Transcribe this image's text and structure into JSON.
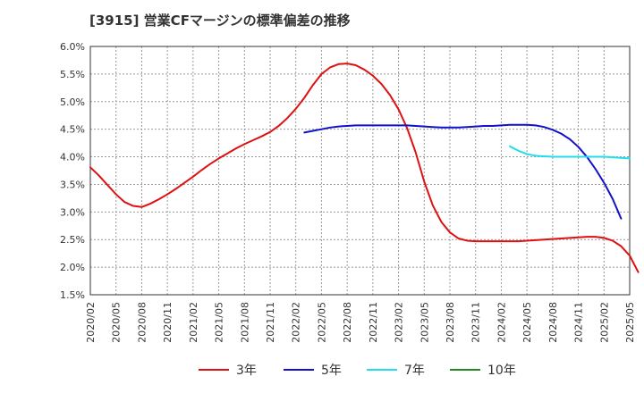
{
  "chart_data": {
    "type": "line",
    "title": "[3915]  営業CFマージンの標準偏差の推移",
    "xlabel": "",
    "ylabel": "",
    "ylim": [
      1.5,
      6.0
    ],
    "y_ticks": [
      "1.5%",
      "2.0%",
      "2.5%",
      "3.0%",
      "3.5%",
      "4.0%",
      "4.5%",
      "5.0%",
      "5.5%",
      "6.0%"
    ],
    "x_ticks": [
      "2020/02",
      "2020/05",
      "2020/08",
      "2020/11",
      "2021/02",
      "2021/05",
      "2021/08",
      "2021/11",
      "2022/02",
      "2022/05",
      "2022/08",
      "2022/11",
      "2023/02",
      "2023/05",
      "2023/08",
      "2023/11",
      "2024/02",
      "2024/05",
      "2024/08",
      "2024/11",
      "2025/02",
      "2025/05"
    ],
    "grid": true,
    "legend_position": "bottom",
    "series": [
      {
        "name": "3年",
        "color": "#dd1111",
        "points": [
          [
            "2020/02",
            3.81
          ],
          [
            "2020/03",
            3.66
          ],
          [
            "2020/04",
            3.49
          ],
          [
            "2020/05",
            3.32
          ],
          [
            "2020/06",
            3.18
          ],
          [
            "2020/07",
            3.11
          ],
          [
            "2020/08",
            3.09
          ],
          [
            "2020/09",
            3.15
          ],
          [
            "2020/10",
            3.23
          ],
          [
            "2020/11",
            3.32
          ],
          [
            "2020/12",
            3.42
          ],
          [
            "2021/01",
            3.53
          ],
          [
            "2021/02",
            3.64
          ],
          [
            "2021/03",
            3.76
          ],
          [
            "2021/04",
            3.87
          ],
          [
            "2021/05",
            3.97
          ],
          [
            "2021/06",
            4.06
          ],
          [
            "2021/07",
            4.15
          ],
          [
            "2021/08",
            4.23
          ],
          [
            "2021/09",
            4.3
          ],
          [
            "2021/10",
            4.37
          ],
          [
            "2021/11",
            4.45
          ],
          [
            "2021/12",
            4.56
          ],
          [
            "2022/01",
            4.7
          ],
          [
            "2022/02",
            4.87
          ],
          [
            "2022/03",
            5.07
          ],
          [
            "2022/04",
            5.3
          ],
          [
            "2022/05",
            5.5
          ],
          [
            "2022/06",
            5.62
          ],
          [
            "2022/07",
            5.68
          ],
          [
            "2022/08",
            5.69
          ],
          [
            "2022/09",
            5.66
          ],
          [
            "2022/10",
            5.58
          ],
          [
            "2022/11",
            5.47
          ],
          [
            "2022/12",
            5.32
          ],
          [
            "2023/01",
            5.12
          ],
          [
            "2023/02",
            4.86
          ],
          [
            "2023/03",
            4.52
          ],
          [
            "2023/04",
            4.08
          ],
          [
            "2023/05",
            3.55
          ],
          [
            "2023/06",
            3.12
          ],
          [
            "2023/07",
            2.82
          ],
          [
            "2023/08",
            2.63
          ],
          [
            "2023/09",
            2.52
          ],
          [
            "2023/10",
            2.48
          ],
          [
            "2023/11",
            2.47
          ],
          [
            "2023/12",
            2.47
          ],
          [
            "2024/01",
            2.47
          ],
          [
            "2024/02",
            2.47
          ],
          [
            "2024/03",
            2.47
          ],
          [
            "2024/04",
            2.47
          ],
          [
            "2024/05",
            2.48
          ],
          [
            "2024/06",
            2.49
          ],
          [
            "2024/07",
            2.5
          ],
          [
            "2024/08",
            2.51
          ],
          [
            "2024/09",
            2.52
          ],
          [
            "2024/10",
            2.53
          ],
          [
            "2024/11",
            2.54
          ],
          [
            "2024/12",
            2.55
          ],
          [
            "2025/01",
            2.55
          ],
          [
            "2025/02",
            2.53
          ],
          [
            "2025/03",
            2.48
          ],
          [
            "2025/04",
            2.38
          ],
          [
            "2025/05",
            2.21
          ],
          [
            "2025/06",
            1.91
          ]
        ]
      },
      {
        "name": "5年",
        "color": "#1111cc",
        "points": [
          [
            "2022/03",
            4.44
          ],
          [
            "2022/04",
            4.47
          ],
          [
            "2022/05",
            4.5
          ],
          [
            "2022/06",
            4.53
          ],
          [
            "2022/07",
            4.55
          ],
          [
            "2022/08",
            4.56
          ],
          [
            "2022/09",
            4.57
          ],
          [
            "2022/10",
            4.57
          ],
          [
            "2022/11",
            4.57
          ],
          [
            "2022/12",
            4.57
          ],
          [
            "2023/01",
            4.57
          ],
          [
            "2023/02",
            4.57
          ],
          [
            "2023/03",
            4.57
          ],
          [
            "2023/04",
            4.56
          ],
          [
            "2023/05",
            4.55
          ],
          [
            "2023/06",
            4.54
          ],
          [
            "2023/07",
            4.53
          ],
          [
            "2023/08",
            4.53
          ],
          [
            "2023/09",
            4.53
          ],
          [
            "2023/10",
            4.54
          ],
          [
            "2023/11",
            4.55
          ],
          [
            "2023/12",
            4.56
          ],
          [
            "2024/01",
            4.56
          ],
          [
            "2024/02",
            4.57
          ],
          [
            "2024/03",
            4.58
          ],
          [
            "2024/04",
            4.58
          ],
          [
            "2024/05",
            4.58
          ],
          [
            "2024/06",
            4.57
          ],
          [
            "2024/07",
            4.54
          ],
          [
            "2024/08",
            4.49
          ],
          [
            "2024/09",
            4.42
          ],
          [
            "2024/10",
            4.32
          ],
          [
            "2024/11",
            4.18
          ],
          [
            "2024/12",
            4.0
          ],
          [
            "2025/01",
            3.78
          ],
          [
            "2025/02",
            3.53
          ],
          [
            "2025/03",
            3.24
          ],
          [
            "2025/04",
            2.88
          ]
        ]
      },
      {
        "name": "7年",
        "color": "#22ddee",
        "points": [
          [
            "2024/03",
            4.19
          ],
          [
            "2024/04",
            4.11
          ],
          [
            "2024/05",
            4.05
          ],
          [
            "2024/06",
            4.02
          ],
          [
            "2024/07",
            4.01
          ],
          [
            "2024/08",
            4.0
          ],
          [
            "2024/09",
            4.0
          ],
          [
            "2024/10",
            4.0
          ],
          [
            "2024/11",
            4.0
          ],
          [
            "2024/12",
            4.0
          ],
          [
            "2025/01",
            4.0
          ],
          [
            "2025/02",
            4.0
          ],
          [
            "2025/03",
            3.99
          ],
          [
            "2025/04",
            3.98
          ],
          [
            "2025/05",
            3.97
          ]
        ]
      },
      {
        "name": "10年",
        "color": "#228822",
        "points": []
      }
    ]
  }
}
